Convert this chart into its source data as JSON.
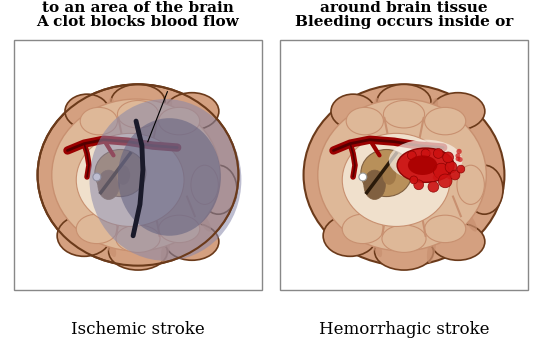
{
  "background_color": "#ffffff",
  "left_title": "Ischemic stroke",
  "right_title": "Hemorrhagic stroke",
  "left_caption_line1": "A clot blocks blood flow",
  "left_caption_line2": "to an area of the brain",
  "right_caption_line1": "Bleeding occurs inside or",
  "right_caption_line2": "around brain tissue",
  "title_fontsize": 12,
  "caption_fontsize": 11,
  "fig_width": 5.42,
  "fig_height": 3.64,
  "dpi": 100,
  "skin_outer": "#d4a080",
  "skin_mid": "#c89070",
  "skin_light": "#e8c0a0",
  "skin_inner": "#deb898",
  "groove_dark": "#8b5a3a",
  "thal_color": "#b8905a",
  "thal_dark": "#806040",
  "vessel_red": "#9b0000",
  "vessel_dark": "#550000",
  "shadow_blue": "#8888aa",
  "shadow_dark": "#404060",
  "bleed_red": "#cc1111",
  "bleed_dark": "#880000",
  "outline": "#6b3a1a",
  "cream_white": "#f0e0cc",
  "bg_white": "#ffffff"
}
